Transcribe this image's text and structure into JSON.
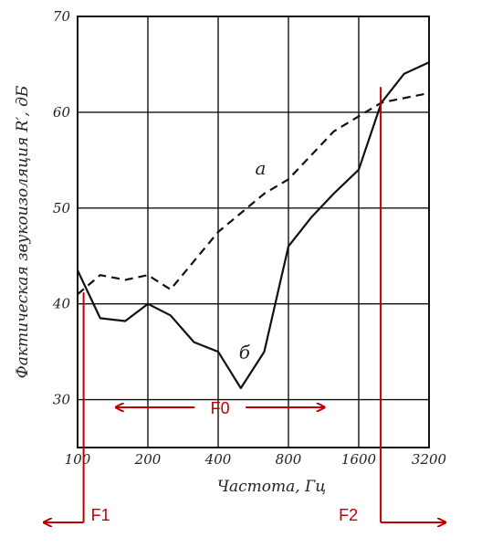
{
  "chart_data": {
    "type": "line",
    "xlabel": "Частота, Гц",
    "ylabel": "Фактическая звукоизоляция R′, дБ",
    "x_scale": "log2",
    "xlim": [
      100,
      3200
    ],
    "ylim": [
      25,
      70
    ],
    "grid": true,
    "x_ticks": [
      {
        "value": 100,
        "label": "100"
      },
      {
        "value": 200,
        "label": "200"
      },
      {
        "value": 400,
        "label": "400"
      },
      {
        "value": 800,
        "label": "800"
      },
      {
        "value": 1600,
        "label": "1600"
      },
      {
        "value": 3200,
        "label": "3200"
      }
    ],
    "y_ticks": [
      {
        "value": 30,
        "label": "30"
      },
      {
        "value": 40,
        "label": "40"
      },
      {
        "value": 50,
        "label": "50"
      },
      {
        "value": 60,
        "label": "60"
      },
      {
        "value": 70,
        "label": "70"
      }
    ],
    "series": [
      {
        "name": "а",
        "style": "dashed",
        "points": [
          [
            100,
            41
          ],
          [
            125,
            43
          ],
          [
            160,
            42.5
          ],
          [
            200,
            43
          ],
          [
            250,
            41.5
          ],
          [
            400,
            47.5
          ],
          [
            630,
            51.5
          ],
          [
            800,
            53
          ],
          [
            1250,
            58
          ],
          [
            2000,
            61
          ],
          [
            3200,
            62
          ]
        ]
      },
      {
        "name": "б",
        "style": "solid",
        "points": [
          [
            100,
            43.5
          ],
          [
            125,
            38.5
          ],
          [
            160,
            38.2
          ],
          [
            200,
            40
          ],
          [
            250,
            38.8
          ],
          [
            315,
            36
          ],
          [
            400,
            35
          ],
          [
            500,
            31.2
          ],
          [
            630,
            35
          ],
          [
            800,
            46
          ],
          [
            1000,
            49
          ],
          [
            1250,
            51.5
          ],
          [
            1600,
            54
          ],
          [
            2000,
            61
          ],
          [
            2500,
            64
          ],
          [
            3200,
            65.2
          ]
        ]
      }
    ],
    "annotations": {
      "f0": {
        "label": "F0",
        "x_from": 250,
        "x_to": 1250,
        "y": 29.2
      },
      "f1": {
        "label": "F1",
        "x": 112,
        "y": 41.2
      },
      "f2": {
        "label": "F2",
        "x": 1900,
        "y": 61.3
      }
    }
  },
  "colors": {
    "ink": "#111111",
    "annotation": "#c00000"
  }
}
